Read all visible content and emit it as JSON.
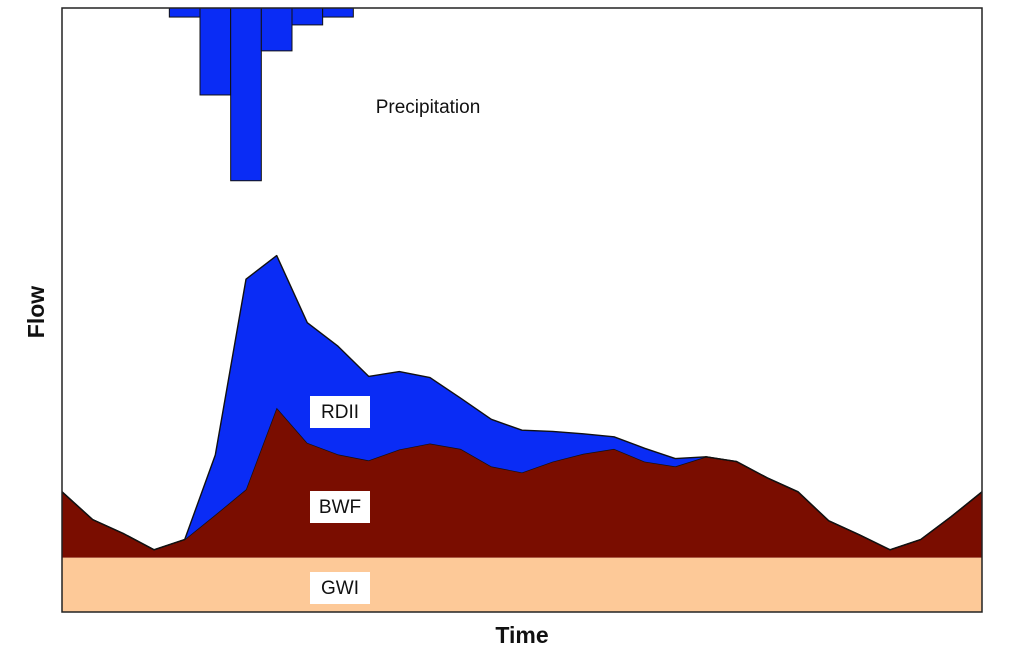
{
  "chart_data": {
    "type": "area",
    "stacked": true,
    "xlabel": "Time",
    "ylabel": "Flow",
    "x": [
      0,
      1,
      2,
      3,
      4,
      5,
      6,
      7,
      8,
      9,
      10,
      11,
      12,
      13,
      14,
      15,
      16,
      17,
      18,
      19,
      20,
      21,
      22,
      23,
      24,
      25,
      26,
      27,
      28,
      29,
      30
    ],
    "xlim": [
      0,
      30
    ],
    "ylim": [
      0,
      100
    ],
    "series": [
      {
        "name": "GWI",
        "color": "#fdc998",
        "values": [
          9,
          9,
          9,
          9,
          9,
          9,
          9,
          9,
          9,
          9,
          9,
          9,
          9,
          9,
          9,
          9,
          9,
          9,
          9,
          9,
          9,
          9,
          9,
          9,
          9,
          9,
          9,
          9,
          9,
          9,
          9
        ]
      },
      {
        "name": "BWF",
        "color": "#7a0d00",
        "values": [
          10.9,
          6.3,
          4.0,
          1.3,
          3.0,
          7.1,
          11.3,
          24.8,
          19.0,
          17.1,
          16.1,
          17.9,
          18.9,
          18.0,
          15.1,
          14.1,
          15.9,
          17.2,
          18.0,
          15.9,
          15.1,
          16.7,
          15.9,
          13.2,
          10.9,
          6.1,
          3.8,
          1.3,
          3.0,
          6.8,
          10.9
        ]
      },
      {
        "name": "RDII",
        "color": "#0a2cf5",
        "values": [
          0,
          0,
          0,
          0,
          0,
          9.9,
          34.8,
          25.2,
          19.9,
          17.9,
          13.9,
          12.9,
          10.9,
          8.4,
          7.8,
          7.0,
          5.0,
          3.3,
          2.0,
          2.2,
          1.3,
          0,
          0,
          0,
          0,
          0,
          0,
          0,
          0,
          0,
          0
        ]
      }
    ],
    "precipitation": {
      "name": "Precipitation",
      "color": "#0a2cf5",
      "x": [
        4,
        5,
        6,
        7,
        8,
        9
      ],
      "values": [
        1.5,
        14.4,
        28.6,
        7.1,
        2.8,
        1.5
      ]
    }
  }
}
